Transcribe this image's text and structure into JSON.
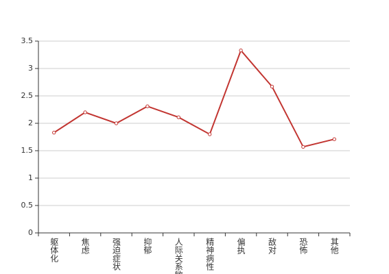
{
  "chart_data": {
    "type": "line",
    "categories": [
      "躯体化",
      "焦虑",
      "强迫症状",
      "抑郁",
      "人际关系敏感",
      "精神病性",
      "偏执",
      "敌对",
      "恐怖",
      "其他"
    ],
    "values": [
      1.83,
      2.2,
      2.0,
      2.31,
      2.11,
      1.8,
      3.33,
      2.67,
      1.57,
      1.71
    ],
    "color": "#c23531",
    "ylim": [
      0,
      3.5
    ],
    "yticks": [
      0,
      0.5,
      1,
      1.5,
      2,
      2.5,
      3,
      3.5
    ],
    "grid": true
  }
}
